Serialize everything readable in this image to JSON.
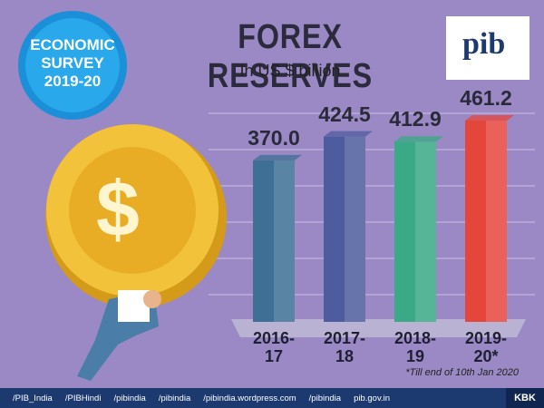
{
  "badge": {
    "line1": "ECONOMIC",
    "line2": "SURVEY",
    "line3": "2019-20"
  },
  "logo": "pib",
  "chart_data": {
    "type": "bar",
    "title": "FOREX RESERVES",
    "subtitle": "In US $ billion",
    "categories": [
      "2016-17",
      "2017-18",
      "2018-19",
      "2019-20*"
    ],
    "values": [
      370.0,
      424.5,
      412.9,
      461.2
    ],
    "value_labels": [
      "370.0",
      "424.5",
      "412.9",
      "461.2"
    ],
    "colors": [
      "#3e6f95",
      "#4d5c9e",
      "#3aa985",
      "#e5463b"
    ],
    "footnote": "*Till end of 10th Jan 2020"
  },
  "illustration": {
    "coin_symbol": "$"
  },
  "footer": {
    "links": [
      "/PIB_India",
      "/PIBHindi",
      "/pibindia",
      "/pibindia",
      "/pibindia.wordpress.com",
      "/pibindia",
      "pib.gov.in"
    ],
    "tag": "KBK"
  }
}
